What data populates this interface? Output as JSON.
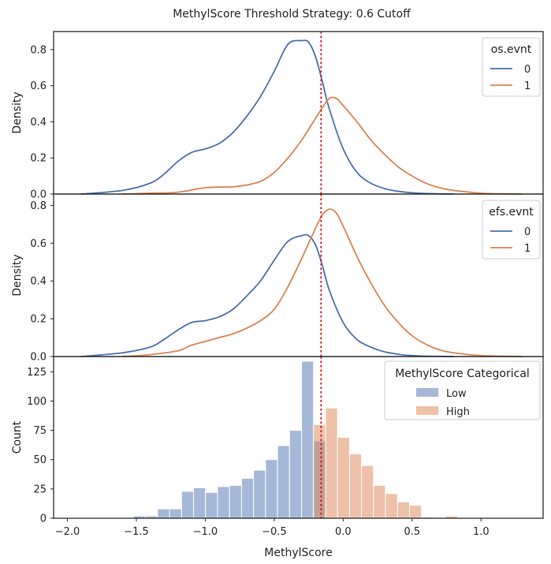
{
  "suptitle": "MethylScore Threshold Strategy: 0.6 Cutoff",
  "colors": {
    "series0": "#4c72b0",
    "series1": "#dd8452",
    "cutoff": "#e3001b",
    "axes": "#262626"
  },
  "chart_data": [
    {
      "type": "line",
      "ylabel": "Density",
      "ylim": [
        0,
        0.9
      ],
      "yticks": [
        0,
        0.2,
        0.4,
        0.6,
        0.8
      ],
      "ytick_labels": [
        "0.0",
        "0.2",
        "0.4",
        "0.6",
        "0.8"
      ],
      "xlim": [
        -2.1,
        1.45
      ],
      "cutoff_x": -0.16,
      "legend": {
        "title": "os.evnt",
        "placement": "top-right"
      },
      "series": [
        {
          "name": "0",
          "x": [
            -1.9,
            -1.6,
            -1.4,
            -1.3,
            -1.2,
            -1.1,
            -1.0,
            -0.9,
            -0.8,
            -0.7,
            -0.6,
            -0.5,
            -0.4,
            -0.3,
            -0.25,
            -0.2,
            -0.15,
            -0.1,
            0.0,
            0.1,
            0.2,
            0.3,
            0.4,
            0.5,
            0.6,
            0.8
          ],
          "y": [
            0.0,
            0.02,
            0.06,
            0.11,
            0.18,
            0.23,
            0.25,
            0.28,
            0.34,
            0.43,
            0.54,
            0.68,
            0.83,
            0.85,
            0.84,
            0.76,
            0.62,
            0.47,
            0.25,
            0.12,
            0.06,
            0.03,
            0.015,
            0.007,
            0.003,
            0.0
          ]
        },
        {
          "name": "1",
          "x": [
            -1.6,
            -1.4,
            -1.2,
            -1.0,
            -0.8,
            -0.7,
            -0.6,
            -0.5,
            -0.4,
            -0.3,
            -0.2,
            -0.15,
            -0.1,
            -0.05,
            0.0,
            0.1,
            0.2,
            0.3,
            0.4,
            0.5,
            0.6,
            0.7,
            0.8,
            1.0,
            1.3
          ],
          "y": [
            0.0,
            0.005,
            0.01,
            0.035,
            0.04,
            0.05,
            0.07,
            0.12,
            0.2,
            0.3,
            0.42,
            0.48,
            0.53,
            0.53,
            0.49,
            0.4,
            0.3,
            0.22,
            0.15,
            0.1,
            0.06,
            0.035,
            0.02,
            0.005,
            0.0
          ]
        }
      ]
    },
    {
      "type": "line",
      "ylabel": "Density",
      "ylim": [
        0,
        0.86
      ],
      "yticks": [
        0,
        0.2,
        0.4,
        0.6,
        0.8
      ],
      "ytick_labels": [
        "0.0",
        "0.2",
        "0.4",
        "0.6",
        "0.8"
      ],
      "xlim": [
        -2.1,
        1.45
      ],
      "cutoff_x": -0.16,
      "legend": {
        "title": "efs.evnt",
        "placement": "top-right"
      },
      "series": [
        {
          "name": "0",
          "x": [
            -1.9,
            -1.6,
            -1.4,
            -1.3,
            -1.2,
            -1.1,
            -1.0,
            -0.9,
            -0.8,
            -0.7,
            -0.6,
            -0.5,
            -0.4,
            -0.3,
            -0.25,
            -0.2,
            -0.15,
            -0.1,
            0.0,
            0.1,
            0.2,
            0.3,
            0.4,
            0.5,
            0.6,
            0.8
          ],
          "y": [
            0.0,
            0.02,
            0.05,
            0.09,
            0.14,
            0.18,
            0.19,
            0.21,
            0.25,
            0.32,
            0.4,
            0.51,
            0.61,
            0.64,
            0.64,
            0.59,
            0.48,
            0.35,
            0.18,
            0.09,
            0.05,
            0.025,
            0.012,
            0.005,
            0.002,
            0.0
          ]
        },
        {
          "name": "1",
          "x": [
            -1.6,
            -1.4,
            -1.2,
            -1.1,
            -1.0,
            -0.9,
            -0.8,
            -0.7,
            -0.6,
            -0.5,
            -0.4,
            -0.3,
            -0.2,
            -0.15,
            -0.1,
            -0.05,
            0.0,
            0.1,
            0.2,
            0.3,
            0.4,
            0.5,
            0.6,
            0.7,
            0.8,
            1.0,
            1.3
          ],
          "y": [
            0.0,
            0.01,
            0.03,
            0.06,
            0.08,
            0.1,
            0.12,
            0.15,
            0.19,
            0.25,
            0.37,
            0.52,
            0.68,
            0.75,
            0.78,
            0.76,
            0.69,
            0.53,
            0.39,
            0.27,
            0.18,
            0.11,
            0.065,
            0.035,
            0.02,
            0.005,
            0.0
          ]
        }
      ]
    },
    {
      "type": "bar",
      "xlabel": "MethylScore",
      "ylabel": "Count",
      "ylim": [
        0,
        138
      ],
      "yticks": [
        0,
        25,
        50,
        75,
        100,
        125
      ],
      "ytick_labels": [
        "0",
        "25",
        "50",
        "75",
        "100",
        "125"
      ],
      "xlim": [
        -2.1,
        1.45
      ],
      "xticks": [
        -2.0,
        -1.5,
        -1.0,
        -0.5,
        0.0,
        0.5,
        1.0
      ],
      "xtick_labels": [
        "−2.0",
        "−1.5",
        "−1.0",
        "−0.5",
        "0.0",
        "0.5",
        "1.0"
      ],
      "cutoff_x": -0.16,
      "bin_width": 0.087,
      "legend": {
        "title": "MethylScore Categorical",
        "placement": "top-right"
      },
      "series": [
        {
          "name": "Low",
          "bin_starts": [
            -1.52,
            -1.433,
            -1.346,
            -1.259,
            -1.172,
            -1.085,
            -0.998,
            -0.911,
            -0.824,
            -0.737,
            -0.65,
            -0.563,
            -0.476,
            -0.389,
            -0.302,
            -0.215
          ],
          "values": [
            2,
            2,
            8,
            8,
            23,
            26,
            22,
            27,
            28,
            34,
            41,
            50,
            62,
            75,
            134,
            66
          ]
        },
        {
          "name": "High",
          "bin_starts": [
            -0.215,
            -0.128,
            -0.041,
            0.046,
            0.133,
            0.22,
            0.307,
            0.394,
            0.481,
            0.568,
            0.742
          ],
          "values": [
            80,
            94,
            69,
            55,
            45,
            28,
            21,
            14,
            11,
            1,
            2
          ]
        }
      ]
    }
  ]
}
